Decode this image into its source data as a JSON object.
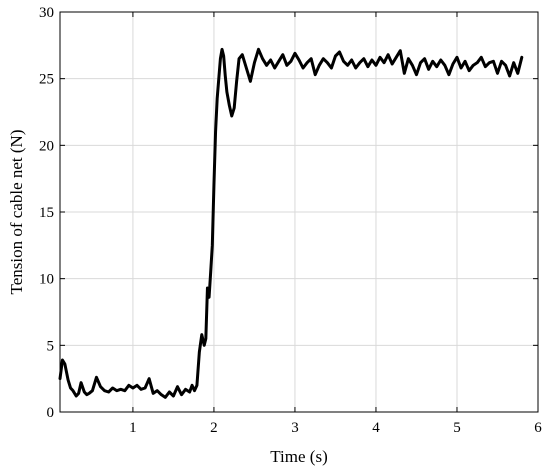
{
  "chart_data": {
    "type": "line",
    "xlabel": "Time (s)",
    "ylabel": "Tension of cable net (N)",
    "xlim": [
      0.1,
      6
    ],
    "ylim": [
      0,
      30
    ],
    "xticks": [
      1,
      2,
      3,
      4,
      5,
      6
    ],
    "yticks": [
      0,
      5,
      10,
      15,
      20,
      25,
      30
    ],
    "grid": true,
    "series": [
      {
        "color": "#000000",
        "x": [
          0.1,
          0.13,
          0.16,
          0.2,
          0.23,
          0.26,
          0.3,
          0.33,
          0.36,
          0.4,
          0.43,
          0.46,
          0.5,
          0.55,
          0.6,
          0.65,
          0.7,
          0.75,
          0.8,
          0.85,
          0.9,
          0.95,
          1.0,
          1.05,
          1.1,
          1.15,
          1.2,
          1.25,
          1.3,
          1.35,
          1.4,
          1.45,
          1.5,
          1.55,
          1.6,
          1.65,
          1.7,
          1.73,
          1.76,
          1.79,
          1.82,
          1.85,
          1.88,
          1.9,
          1.92,
          1.94,
          1.96,
          1.98,
          2.0,
          2.02,
          2.04,
          2.06,
          2.08,
          2.1,
          2.12,
          2.14,
          2.16,
          2.19,
          2.22,
          2.25,
          2.28,
          2.31,
          2.35,
          2.4,
          2.45,
          2.5,
          2.55,
          2.6,
          2.65,
          2.7,
          2.75,
          2.8,
          2.85,
          2.9,
          2.95,
          3.0,
          3.05,
          3.1,
          3.15,
          3.2,
          3.25,
          3.3,
          3.35,
          3.4,
          3.45,
          3.5,
          3.55,
          3.6,
          3.65,
          3.7,
          3.75,
          3.8,
          3.85,
          3.9,
          3.95,
          4.0,
          4.05,
          4.1,
          4.15,
          4.2,
          4.25,
          4.3,
          4.35,
          4.4,
          4.45,
          4.5,
          4.55,
          4.6,
          4.65,
          4.7,
          4.75,
          4.8,
          4.85,
          4.9,
          4.95,
          5.0,
          5.05,
          5.1,
          5.15,
          5.2,
          5.25,
          5.3,
          5.35,
          5.4,
          5.45,
          5.5,
          5.55,
          5.6,
          5.65,
          5.7,
          5.75,
          5.8
        ],
        "y": [
          2.5,
          3.9,
          3.6,
          2.4,
          1.8,
          1.6,
          1.2,
          1.4,
          2.2,
          1.5,
          1.3,
          1.4,
          1.6,
          2.6,
          1.9,
          1.6,
          1.5,
          1.8,
          1.6,
          1.7,
          1.6,
          2.0,
          1.8,
          2.0,
          1.7,
          1.8,
          2.5,
          1.4,
          1.6,
          1.3,
          1.1,
          1.5,
          1.2,
          1.9,
          1.3,
          1.7,
          1.5,
          2.0,
          1.6,
          2.0,
          4.5,
          5.8,
          5.0,
          5.5,
          9.3,
          8.6,
          10.5,
          12.5,
          17.0,
          21.0,
          23.5,
          25.0,
          26.5,
          27.2,
          26.7,
          25.2,
          24.0,
          23.0,
          22.2,
          22.8,
          24.8,
          26.5,
          26.8,
          25.8,
          24.8,
          26.2,
          27.2,
          26.5,
          26.0,
          26.4,
          25.8,
          26.3,
          26.8,
          26.0,
          26.3,
          26.9,
          26.4,
          25.8,
          26.2,
          26.5,
          25.3,
          26.0,
          26.5,
          26.2,
          25.8,
          26.7,
          27.0,
          26.3,
          26.0,
          26.4,
          25.8,
          26.2,
          26.5,
          25.9,
          26.4,
          26.0,
          26.6,
          26.2,
          26.8,
          26.1,
          26.6,
          27.1,
          25.4,
          26.5,
          26.0,
          25.3,
          26.2,
          26.5,
          25.7,
          26.3,
          25.9,
          26.4,
          26.0,
          25.3,
          26.1,
          26.6,
          25.8,
          26.3,
          25.6,
          26.0,
          26.2,
          26.6,
          25.9,
          26.2,
          26.3,
          25.4,
          26.3,
          26.0,
          25.2,
          26.2,
          25.4,
          26.6
        ]
      }
    ]
  }
}
